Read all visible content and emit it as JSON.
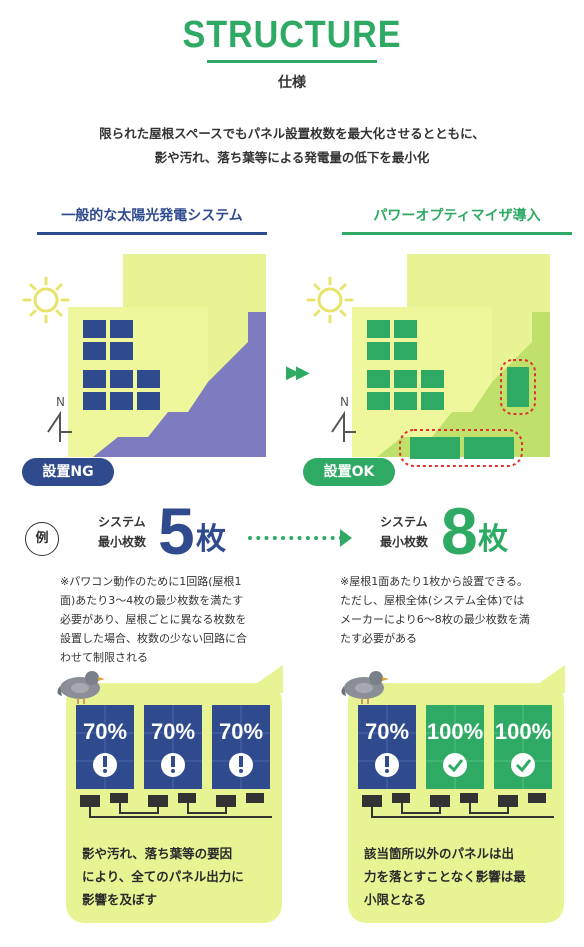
{
  "header": {
    "title": "STRUCTURE",
    "subtitle": "仕様",
    "lead_line1": "限られた屋根スペースでもパネル設置枚数を最大化させるとともに、",
    "lead_line2": "影や汚れ、落ち葉等による発電量の低下を最小化"
  },
  "left": {
    "heading": "一般的な太陽光発電システム",
    "badge": "設置NG",
    "count_label1": "システム",
    "count_label2": "最小枚数",
    "count_num": "5",
    "count_unit": "枚",
    "note_lines": [
      "※パワコン動作のために1回路(屋根1",
      "面)あたり3〜4枚の最少枚数を満たす",
      "必要があり、屋根ごとに異なる枚数を",
      "設置した場合、枚数の少ない回路に合",
      "わせて制限される"
    ],
    "panels": [
      "70%",
      "70%",
      "70%"
    ],
    "caption_lines": [
      "影や汚れ、落ち葉等の要因",
      "により、全てのパネル出力に",
      "影響を及ぼす"
    ],
    "compass": "N"
  },
  "right": {
    "heading": "パワーオプティマイザ導入",
    "badge": "設置OK",
    "count_label1": "システム",
    "count_label2": "最小枚数",
    "count_num": "8",
    "count_unit": "枚",
    "note_lines": [
      "※屋根1面あたり1枚から設置できる。",
      "ただし、屋根全体(システム全体)では",
      "メーカーにより6〜8枚の最少枚数を満",
      "たす必要がある"
    ],
    "panels": [
      "70%",
      "100%",
      "100%"
    ],
    "caption_lines": [
      "該当箇所以外のパネルは出",
      "力を落とすことなく影響は最",
      "小限となる"
    ],
    "compass": "N"
  },
  "example_label": "例",
  "colors": {
    "green": "#2eaa64",
    "navy": "#2f4b8e",
    "lime": "#e8f494",
    "roof": "#f0f79a"
  }
}
